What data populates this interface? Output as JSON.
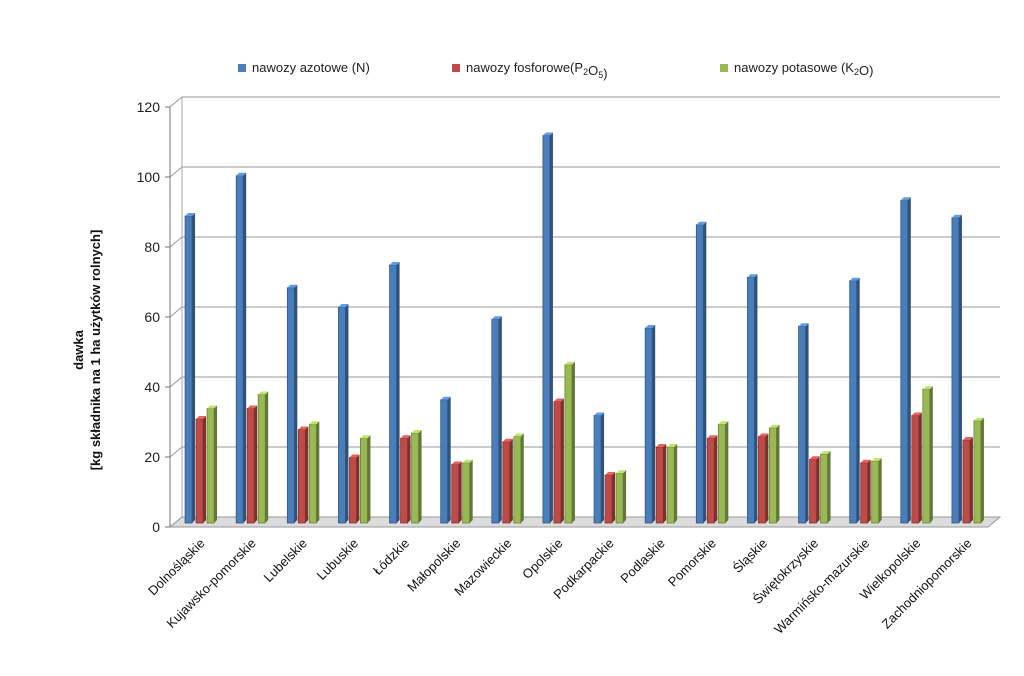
{
  "chart_data": {
    "type": "bar",
    "title": "",
    "ylabel_line1": "dawka",
    "ylabel_line2": "[kg składnika na 1 ha użytków rolnych]",
    "xlabel": "",
    "ylim": [
      0,
      120
    ],
    "yticks": [
      0,
      20,
      40,
      60,
      80,
      100,
      120
    ],
    "legend_position": "top",
    "grid": true,
    "categories": [
      "Dolnośląskie",
      "Kujawsko-pomorskie",
      "Lubelskie",
      "Lubuskie",
      "Łódzkie",
      "Małopolskie",
      "Mazowieckie",
      "Opolskie",
      "Podkarpackie",
      "Podlaskie",
      "Pomorskie",
      "Śląskie",
      "Świętokrzyskie",
      "Warmińsko-mazurskie",
      "Wielkopolskie",
      "Zachodniopomorskie"
    ],
    "series": [
      {
        "name": "nawozy azotowe (N)",
        "label_parts": [
          {
            "t": "nawozy azotowe (N)"
          }
        ],
        "color": "#4a7ebb",
        "values": [
          88,
          99.5,
          67.5,
          62,
          74,
          35.5,
          58.5,
          111,
          31,
          56,
          85.5,
          70.5,
          56.5,
          69.5,
          92.5,
          87.5
        ]
      },
      {
        "name": "nawozy fosforowe(P2O5)",
        "label_parts": [
          {
            "t": "nawozy fosforowe(P"
          },
          {
            "t": "2",
            "sub": true
          },
          {
            "t": "O"
          },
          {
            "t": "5",
            "sub": true
          },
          {
            "t": ")"
          }
        ],
        "color": "#be4b48",
        "values": [
          30,
          33,
          27,
          19,
          24.5,
          17,
          23.5,
          35,
          14,
          22,
          24.5,
          25,
          18.5,
          17.5,
          31,
          24
        ]
      },
      {
        "name": "nawozy potasowe (K2O)",
        "label_parts": [
          {
            "t": "nawozy potasowe (K"
          },
          {
            "t": "2",
            "sub": true
          },
          {
            "t": "O)"
          }
        ],
        "color": "#98b954",
        "values": [
          33,
          37,
          28.5,
          24.5,
          26,
          17.5,
          25,
          45.5,
          14.5,
          22,
          28.5,
          27.5,
          20,
          18,
          38.5,
          29.5
        ]
      }
    ]
  }
}
